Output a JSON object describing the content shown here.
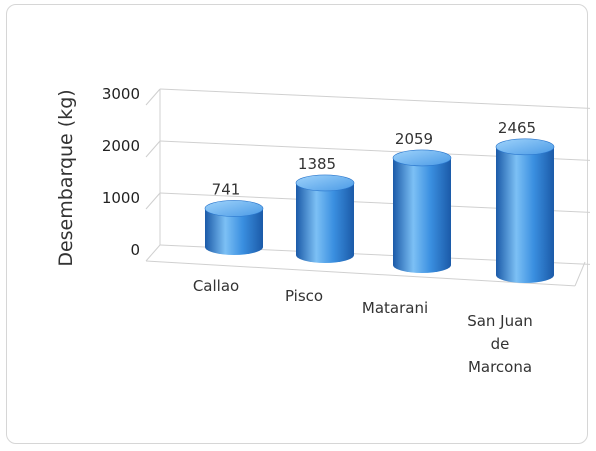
{
  "chart_data": {
    "type": "bar",
    "style": "3d-cylinder",
    "categories": [
      "Callao",
      "Pisco",
      "Matarani",
      "San Juan de Marcona"
    ],
    "category_lines": [
      [
        "Callao"
      ],
      [
        "Pisco"
      ],
      [
        "Matarani"
      ],
      [
        "San Juan",
        "de",
        "Marcona"
      ]
    ],
    "values": [
      741,
      1385,
      2059,
      2465
    ],
    "ylabel": "Desembarque (kg)",
    "xlabel": "",
    "ylim": [
      0,
      3000
    ],
    "yticks": [
      0,
      1000,
      2000,
      3000
    ],
    "grid": true,
    "legend": "none",
    "colors": {
      "bar_main": "#2f7fd8",
      "bar_light": "#7cc0f5",
      "bar_dark": "#1b5aa8",
      "grid": "#d0d0d0"
    }
  }
}
